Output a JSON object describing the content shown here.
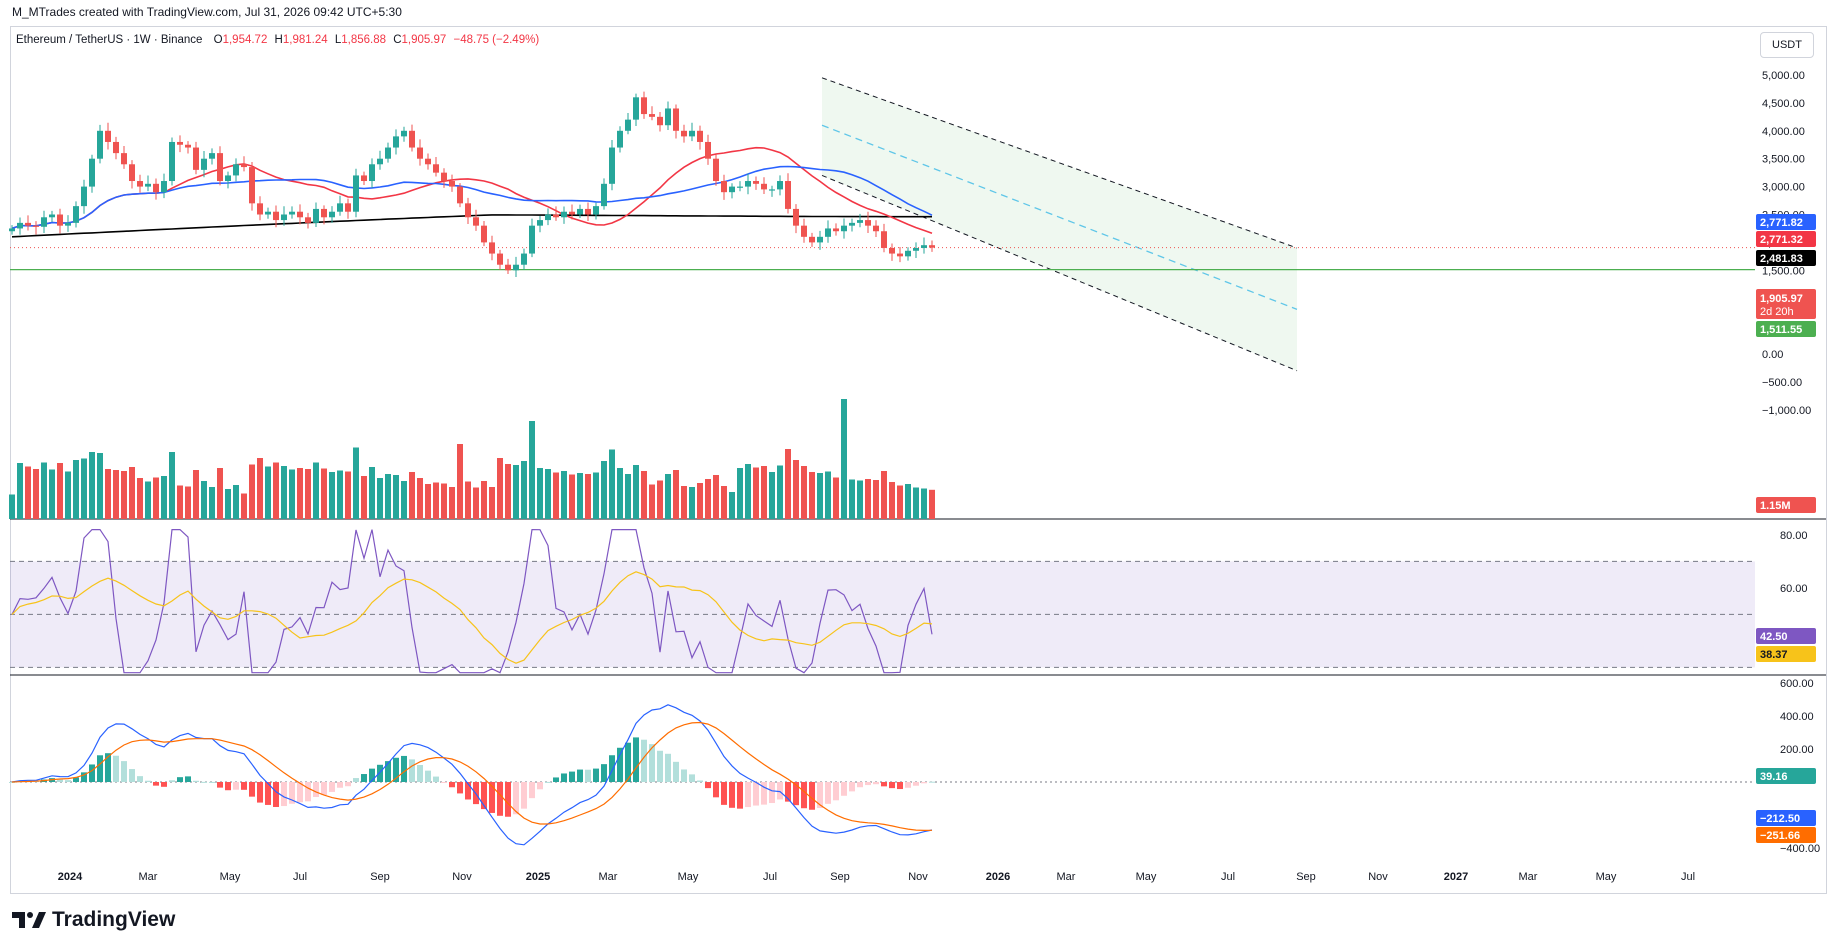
{
  "header": {
    "credit": "M_MTrades created with TradingView.com, Jul 31, 2026 09:42 UTC+5:30"
  },
  "legend": {
    "symbol": "Ethereum / TetherUS · 1W · Binance",
    "o_label": "O",
    "o": "1,954.72",
    "h_label": "H",
    "h": "1,981.24",
    "l_label": "L",
    "l": "1,856.88",
    "c_label": "C",
    "c": "1,905.97",
    "change": "−48.75 (−2.49%)"
  },
  "currency": "USDT",
  "colors": {
    "up": "#26a69a",
    "down": "#ef5350",
    "sma_red": "#f23645",
    "sma_blue": "#2962ff",
    "sma_black": "#000000",
    "support": "#4caf50",
    "rsi": "#7e57c2",
    "rsi_ma": "#f7c31a",
    "macd": "#2962ff",
    "signal": "#ff6d00"
  },
  "footer": {
    "brand": "TradingView"
  },
  "chart_data": {
    "type": "candlestick",
    "price_axis": [
      "5,000.00",
      "4,500.00",
      "4,000.00",
      "3,500.00",
      "3,000.00",
      "2,500.00",
      "2,000.00",
      "1,500.00",
      "1,000.00",
      "500.00",
      "0.00",
      "−500.00",
      "−1,000.00"
    ],
    "time_axis": [
      "2024",
      "Mar",
      "May",
      "Jul",
      "Sep",
      "Nov",
      "2025",
      "Mar",
      "May",
      "Jul",
      "Sep",
      "Nov",
      "2026",
      "Mar",
      "May",
      "Jul",
      "Sep",
      "Nov",
      "2027",
      "Mar",
      "May",
      "Jul"
    ],
    "badges": {
      "sma_blue": "2,771.82",
      "sma_red": "2,771.32",
      "sma_black": "2,481.83",
      "last_price": "1,905.97",
      "countdown": "2d 20h",
      "support": "1,511.55",
      "volume": "1.15M",
      "rsi": "42.50",
      "rsi_ma": "38.37",
      "macd_hist": "39.16",
      "macd": "−212.50",
      "signal": "−251.66"
    },
    "support_level": 1511.55,
    "rsi_axis": [
      "80.00",
      "60.00"
    ],
    "macd_axis": [
      "600.00",
      "400.00",
      "200.00",
      "−400.00"
    ],
    "closes": [
      2250,
      2350,
      2300,
      2280,
      2450,
      2500,
      2300,
      2350,
      2650,
      3000,
      3500,
      4000,
      3800,
      3600,
      3400,
      3100,
      3000,
      3050,
      2900,
      3100,
      3800,
      3750,
      3700,
      3300,
      3500,
      3600,
      3100,
      3200,
      3400,
      3350,
      2700,
      2500,
      2550,
      2400,
      2500,
      2550,
      2450,
      2350,
      2600,
      2450,
      2550,
      2700,
      2550,
      3200,
      3100,
      3400,
      3500,
      3700,
      3900,
      4000,
      3700,
      3500,
      3400,
      3250,
      3100,
      3000,
      2700,
      2450,
      2300,
      2000,
      1800,
      1600,
      1500,
      1600,
      1800,
      2300,
      2400,
      2500,
      2450,
      2550,
      2500,
      2600,
      2500,
      2650,
      3050,
      3700,
      4000,
      4200,
      4600,
      4300,
      4250,
      4100,
      4400,
      4000,
      3900,
      4000,
      3800,
      3500,
      3100,
      2900,
      3000,
      3000,
      3100,
      3050,
      2950,
      2950,
      3100,
      2600,
      2300,
      2100,
      2000,
      2100,
      2250,
      2200,
      2300,
      2350,
      2400,
      2300,
      2200,
      1900,
      1800,
      1750,
      1850,
      1900,
      1950,
      1905.97
    ]
  }
}
